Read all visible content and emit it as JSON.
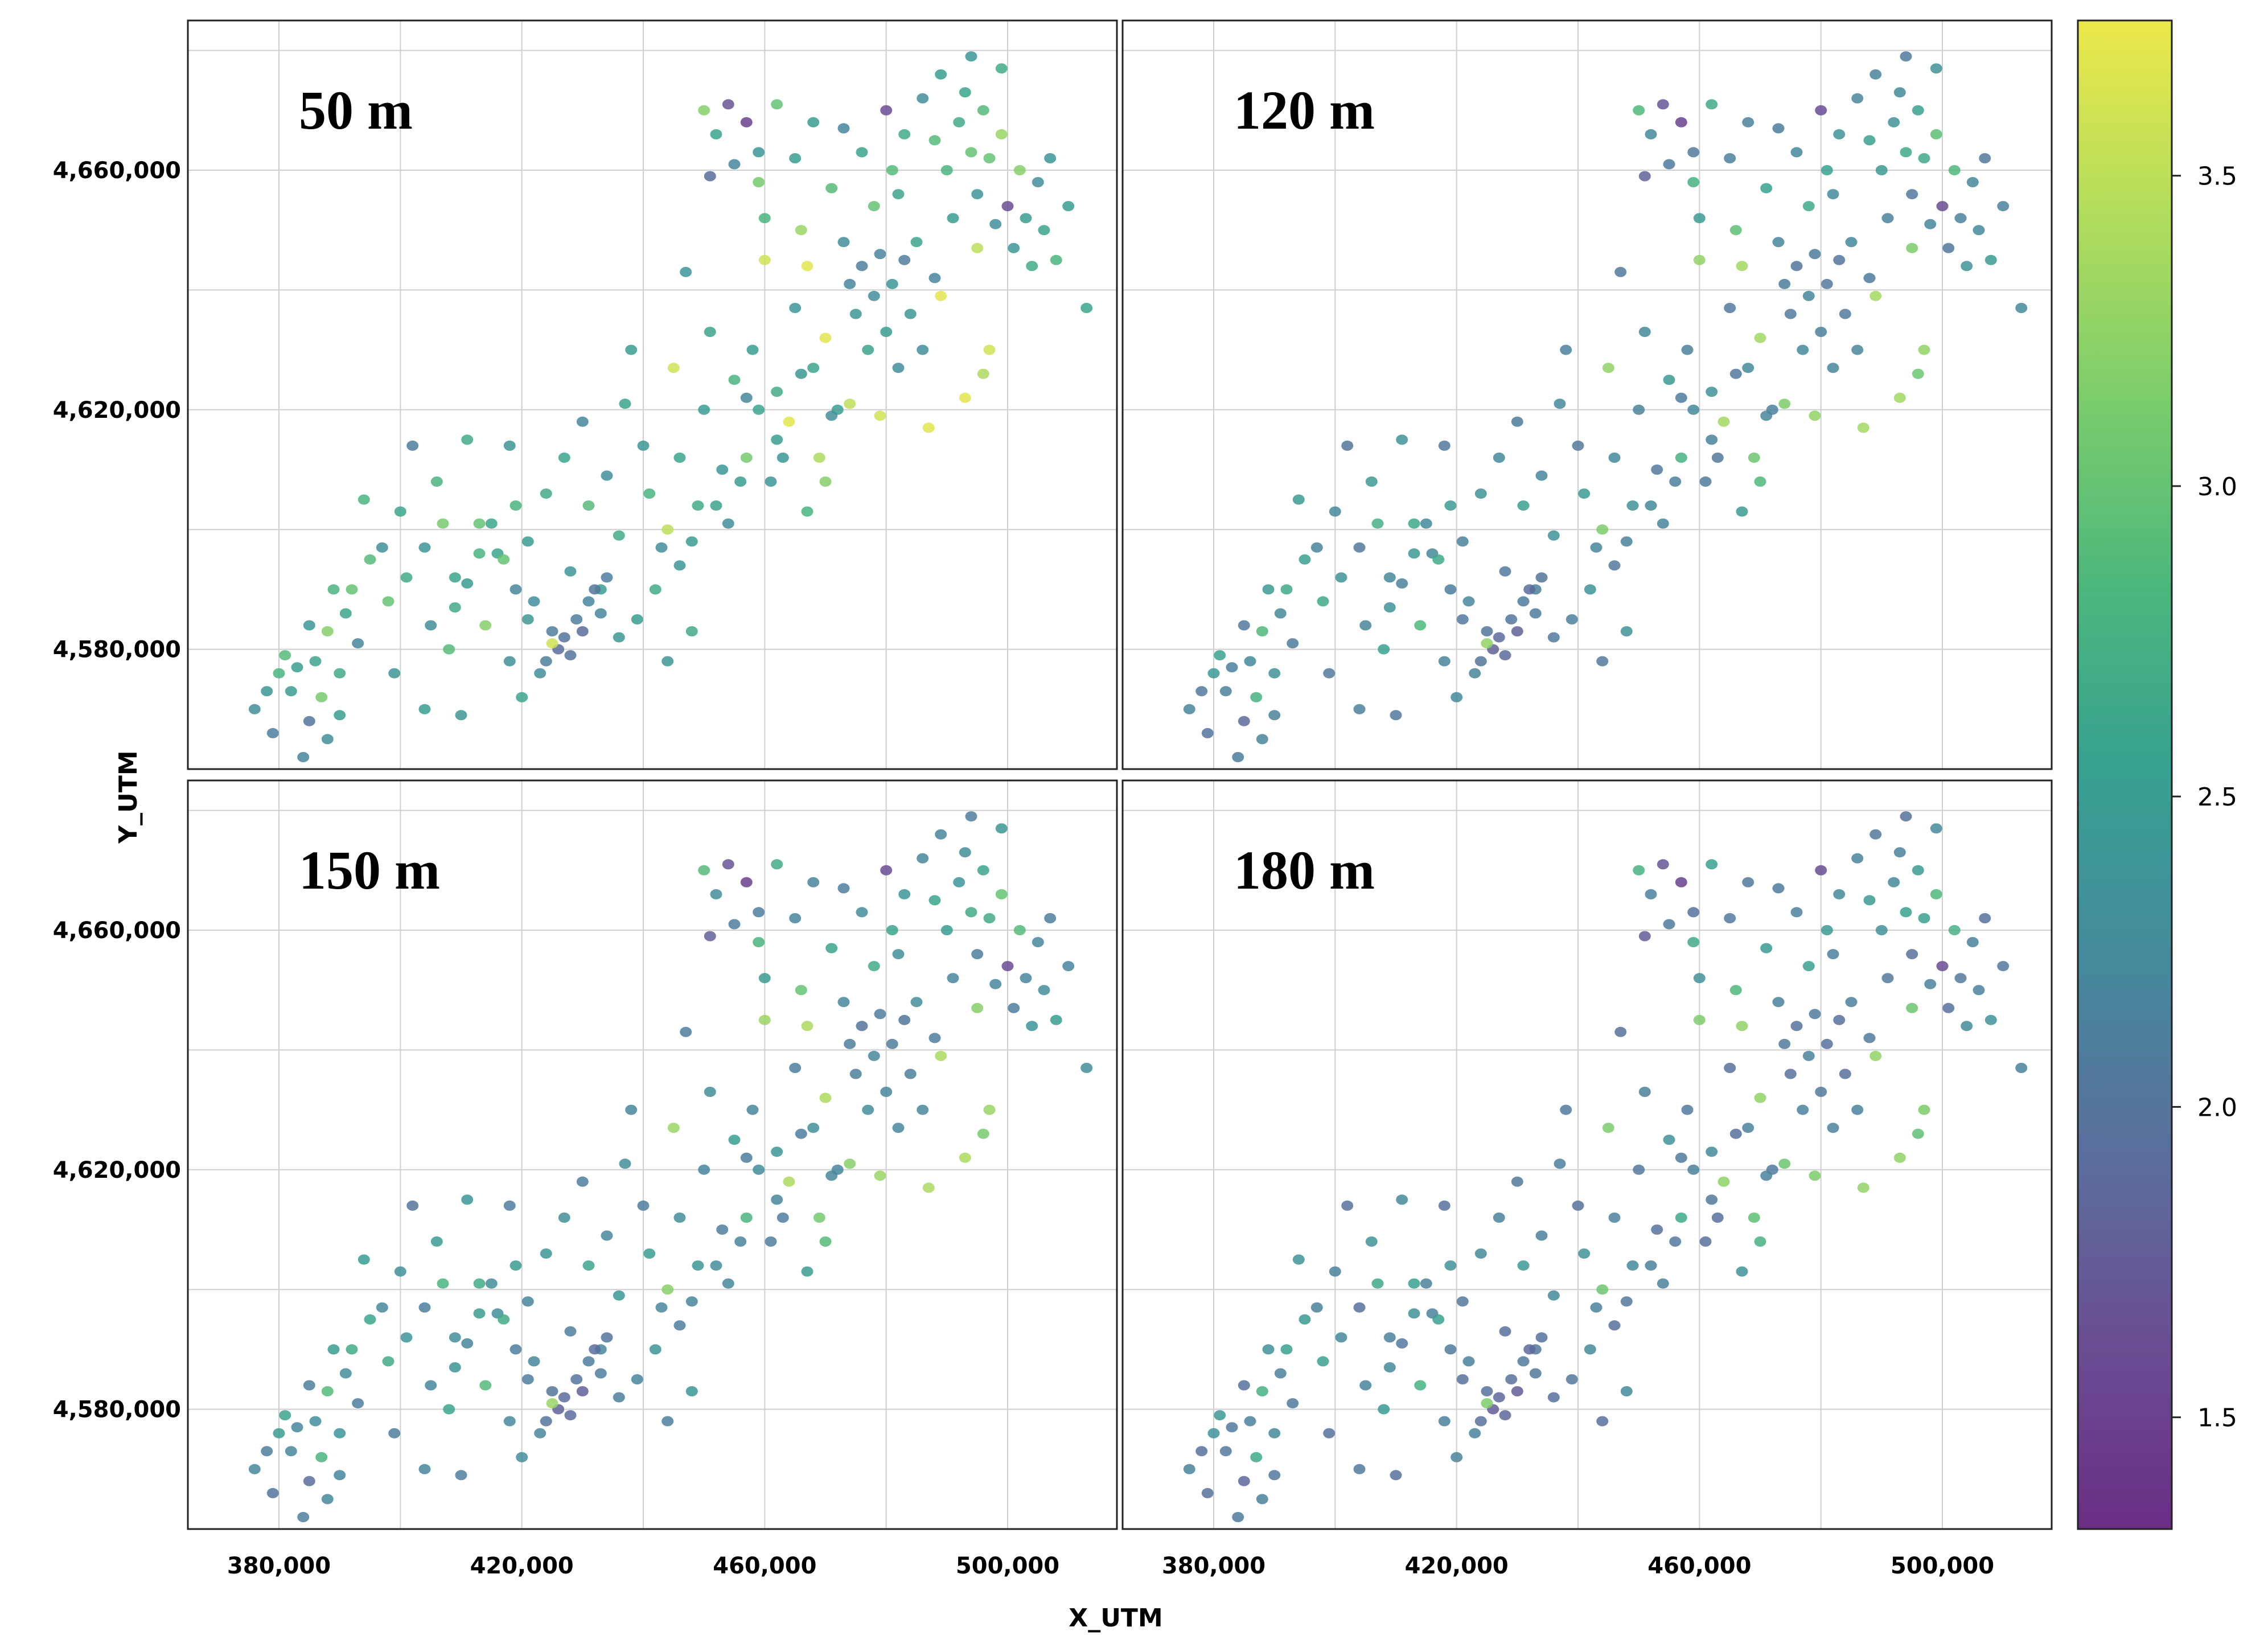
{
  "chart_data": {
    "type": "scatter",
    "layout": "2x2 facet grid",
    "xlabel": "X_UTM",
    "ylabel": "Y_UTM",
    "xlim": [
      365000,
      518000
    ],
    "ylim": [
      4560000,
      4685000
    ],
    "x_ticks": [
      380000,
      420000,
      460000,
      500000
    ],
    "x_tick_labels": [
      "380,000",
      "420,000",
      "460,000",
      "500,000"
    ],
    "y_ticks": [
      4580000,
      4620000,
      4660000
    ],
    "y_tick_labels": [
      "4,580,000",
      "4,620,000",
      "4,660,000"
    ],
    "x_minor": [
      400000,
      440000,
      480000
    ],
    "y_minor": [
      4600000,
      4640000,
      4680000
    ],
    "colorbar": {
      "colormap": "viridis",
      "range": [
        1.32,
        3.75
      ],
      "ticks": [
        1.5,
        2.0,
        2.5,
        3.0,
        3.5
      ],
      "tick_labels": [
        "1.5",
        "2.0",
        "2.5",
        "3.0",
        "3.5"
      ],
      "stops": [
        "#6a2e84",
        "#6a4e94",
        "#5a6f9c",
        "#45899c",
        "#37a091",
        "#4cb77c",
        "#7ccd6c",
        "#b3dd5c",
        "#ece84a"
      ]
    },
    "panels": [
      {
        "label": "50 m",
        "value_shift": 0.0
      },
      {
        "label": "120 m",
        "value_shift": -0.35
      },
      {
        "label": "150 m",
        "value_shift": -0.3
      },
      {
        "label": "180 m",
        "value_shift": -0.45
      }
    ],
    "points": [
      [
        376000,
        4570000,
        2.3
      ],
      [
        379000,
        4566000,
        2.1
      ],
      [
        382000,
        4573000,
        2.5
      ],
      [
        381000,
        4579000,
        2.9
      ],
      [
        385000,
        4584000,
        2.4
      ],
      [
        385000,
        4568000,
        2.0
      ],
      [
        388000,
        4565000,
        2.3
      ],
      [
        390000,
        4576000,
        2.7
      ],
      [
        387000,
        4572000,
        3.1
      ],
      [
        389000,
        4590000,
        2.8
      ],
      [
        391000,
        4586000,
        2.6
      ],
      [
        393000,
        4581000,
        2.2
      ],
      [
        395000,
        4595000,
        2.9
      ],
      [
        398000,
        4588000,
        3.0
      ],
      [
        399000,
        4576000,
        2.4
      ],
      [
        401000,
        4592000,
        2.7
      ],
      [
        402000,
        4614000,
        2.1
      ],
      [
        404000,
        4570000,
        2.5
      ],
      [
        405000,
        4584000,
        2.3
      ],
      [
        406000,
        4608000,
        2.8
      ],
      [
        408000,
        4580000,
        2.9
      ],
      [
        409000,
        4592000,
        2.6
      ],
      [
        410000,
        4569000,
        2.4
      ],
      [
        411000,
        4615000,
        2.7
      ],
      [
        413000,
        4601000,
        3.0
      ],
      [
        414000,
        4584000,
        3.2
      ],
      [
        416000,
        4596000,
        2.6
      ],
      [
        418000,
        4614000,
        2.4
      ],
      [
        419000,
        4604000,
        2.8
      ],
      [
        421000,
        4598000,
        2.5
      ],
      [
        422000,
        4588000,
        2.3
      ],
      [
        424000,
        4606000,
        2.7
      ],
      [
        425000,
        4583000,
        2.1
      ],
      [
        427000,
        4612000,
        2.6
      ],
      [
        428000,
        4593000,
        2.4
      ],
      [
        430000,
        4618000,
        2.2
      ],
      [
        431000,
        4604000,
        2.9
      ],
      [
        433000,
        4590000,
        2.5
      ],
      [
        434000,
        4609000,
        2.3
      ],
      [
        436000,
        4599000,
        2.7
      ],
      [
        437000,
        4621000,
        2.6
      ],
      [
        438000,
        4630000,
        2.5
      ],
      [
        440000,
        4614000,
        2.4
      ],
      [
        441000,
        4606000,
        2.8
      ],
      [
        443000,
        4597000,
        2.3
      ],
      [
        444000,
        4600000,
        3.5
      ],
      [
        445000,
        4627000,
        3.6
      ],
      [
        446000,
        4612000,
        2.6
      ],
      [
        447000,
        4643000,
        2.4
      ],
      [
        449000,
        4604000,
        2.7
      ],
      [
        450000,
        4620000,
        2.5
      ],
      [
        451000,
        4633000,
        2.6
      ],
      [
        453000,
        4610000,
        2.4
      ],
      [
        454000,
        4601000,
        2.3
      ],
      [
        455000,
        4625000,
        2.8
      ],
      [
        457000,
        4612000,
        3.1
      ],
      [
        458000,
        4630000,
        2.5
      ],
      [
        459000,
        4620000,
        2.6
      ],
      [
        461000,
        4608000,
        2.4
      ],
      [
        462000,
        4623000,
        2.7
      ],
      [
        464000,
        4618000,
        3.7
      ],
      [
        465000,
        4637000,
        2.4
      ],
      [
        466000,
        4650000,
        3.3
      ],
      [
        467000,
        4644000,
        3.7
      ],
      [
        468000,
        4627000,
        2.6
      ],
      [
        469000,
        4612000,
        3.4
      ],
      [
        470000,
        4632000,
        3.7
      ],
      [
        471000,
        4657000,
        2.9
      ],
      [
        472000,
        4620000,
        2.5
      ],
      [
        473000,
        4648000,
        2.3
      ],
      [
        474000,
        4641000,
        2.2
      ],
      [
        475000,
        4636000,
        2.4
      ],
      [
        476000,
        4644000,
        2.1
      ],
      [
        477000,
        4630000,
        2.6
      ],
      [
        478000,
        4639000,
        2.3
      ],
      [
        479000,
        4646000,
        2.2
      ],
      [
        480000,
        4633000,
        2.5
      ],
      [
        481000,
        4641000,
        2.4
      ],
      [
        482000,
        4627000,
        2.3
      ],
      [
        483000,
        4645000,
        2.1
      ],
      [
        484000,
        4636000,
        2.4
      ],
      [
        485000,
        4648000,
        2.6
      ],
      [
        486000,
        4630000,
        2.3
      ],
      [
        487000,
        4617000,
        3.7
      ],
      [
        488000,
        4642000,
        2.2
      ],
      [
        489000,
        4639000,
        3.7
      ],
      [
        490000,
        4660000,
        2.8
      ],
      [
        491000,
        4652000,
        2.5
      ],
      [
        492000,
        4668000,
        2.7
      ],
      [
        493000,
        4673000,
        2.6
      ],
      [
        494000,
        4663000,
        3.0
      ],
      [
        495000,
        4656000,
        2.4
      ],
      [
        496000,
        4670000,
        2.9
      ],
      [
        497000,
        4662000,
        3.0
      ],
      [
        498000,
        4651000,
        2.3
      ],
      [
        499000,
        4666000,
        3.3
      ],
      [
        500000,
        4654000,
        1.6
      ],
      [
        501000,
        4647000,
        2.4
      ],
      [
        502000,
        4660000,
        3.2
      ],
      [
        503000,
        4652000,
        2.5
      ],
      [
        504000,
        4644000,
        2.7
      ],
      [
        505000,
        4658000,
        2.3
      ],
      [
        506000,
        4650000,
        2.6
      ],
      [
        507000,
        4662000,
        2.4
      ],
      [
        508000,
        4645000,
        2.8
      ],
      [
        510000,
        4654000,
        2.5
      ],
      [
        513000,
        4637000,
        2.6
      ],
      [
        494000,
        4679000,
        2.4
      ],
      [
        489000,
        4676000,
        2.5
      ],
      [
        499000,
        4677000,
        2.7
      ],
      [
        486000,
        4672000,
        2.3
      ],
      [
        488000,
        4665000,
        2.9
      ],
      [
        495000,
        4647000,
        3.5
      ],
      [
        497000,
        4630000,
        3.6
      ],
      [
        493000,
        4622000,
        3.7
      ],
      [
        496000,
        4626000,
        3.4
      ],
      [
        479000,
        4619000,
        3.6
      ],
      [
        474000,
        4621000,
        3.5
      ],
      [
        460000,
        4645000,
        3.6
      ],
      [
        450000,
        4670000,
        3.2
      ],
      [
        452000,
        4666000,
        2.6
      ],
      [
        454000,
        4671000,
        1.7
      ],
      [
        457000,
        4668000,
        1.5
      ],
      [
        459000,
        4663000,
        2.4
      ],
      [
        455000,
        4661000,
        2.2
      ],
      [
        451000,
        4659000,
        1.9
      ],
      [
        462000,
        4671000,
        3.0
      ],
      [
        468000,
        4668000,
        2.5
      ],
      [
        473000,
        4667000,
        2.2
      ],
      [
        476000,
        4663000,
        2.6
      ],
      [
        480000,
        4670000,
        1.6
      ],
      [
        483000,
        4666000,
        2.7
      ],
      [
        481000,
        4660000,
        2.9
      ],
      [
        465000,
        4662000,
        2.5
      ],
      [
        459000,
        4658000,
        3.1
      ],
      [
        460000,
        4652000,
        2.8
      ],
      [
        482000,
        4656000,
        2.6
      ],
      [
        478000,
        4654000,
        3.0
      ],
      [
        466000,
        4626000,
        2.4
      ],
      [
        471000,
        4619000,
        2.3
      ],
      [
        462000,
        4615000,
        2.5
      ],
      [
        457000,
        4622000,
        2.2
      ],
      [
        427000,
        4582000,
        2.0
      ],
      [
        429000,
        4585000,
        2.1
      ],
      [
        431000,
        4588000,
        2.2
      ],
      [
        428000,
        4579000,
        2.0
      ],
      [
        426000,
        4580000,
        1.9
      ],
      [
        424000,
        4578000,
        2.1
      ],
      [
        432000,
        4590000,
        2.0
      ],
      [
        433000,
        4586000,
        2.2
      ],
      [
        434000,
        4592000,
        2.1
      ],
      [
        430000,
        4583000,
        1.9
      ],
      [
        425000,
        4581000,
        3.6
      ],
      [
        423000,
        4576000,
        2.3
      ],
      [
        421000,
        4585000,
        2.4
      ],
      [
        419000,
        4590000,
        2.2
      ],
      [
        417000,
        4595000,
        3.0
      ],
      [
        415000,
        4601000,
        2.6
      ],
      [
        413000,
        4596000,
        2.8
      ],
      [
        411000,
        4591000,
        2.5
      ],
      [
        409000,
        4587000,
        2.7
      ],
      [
        407000,
        4601000,
        3.1
      ],
      [
        404000,
        4597000,
        2.4
      ],
      [
        400000,
        4603000,
        2.6
      ],
      [
        397000,
        4597000,
        2.3
      ],
      [
        394000,
        4605000,
        2.8
      ],
      [
        392000,
        4590000,
        3.0
      ],
      [
        388000,
        4583000,
        3.2
      ],
      [
        386000,
        4578000,
        2.6
      ],
      [
        383000,
        4577000,
        2.5
      ],
      [
        378000,
        4573000,
        2.4
      ],
      [
        380000,
        4576000,
        2.8
      ],
      [
        384000,
        4562000,
        2.2
      ],
      [
        390000,
        4569000,
        2.5
      ],
      [
        418000,
        4578000,
        2.3
      ],
      [
        420000,
        4572000,
        2.6
      ],
      [
        436000,
        4582000,
        2.4
      ],
      [
        439000,
        4585000,
        2.5
      ],
      [
        442000,
        4590000,
        2.7
      ],
      [
        446000,
        4594000,
        2.4
      ],
      [
        448000,
        4598000,
        2.5
      ],
      [
        452000,
        4604000,
        2.6
      ],
      [
        456000,
        4608000,
        2.5
      ],
      [
        463000,
        4612000,
        2.4
      ],
      [
        467000,
        4603000,
        2.8
      ],
      [
        470000,
        4608000,
        3.2
      ],
      [
        444000,
        4578000,
        2.4
      ],
      [
        448000,
        4583000,
        2.7
      ]
    ]
  }
}
